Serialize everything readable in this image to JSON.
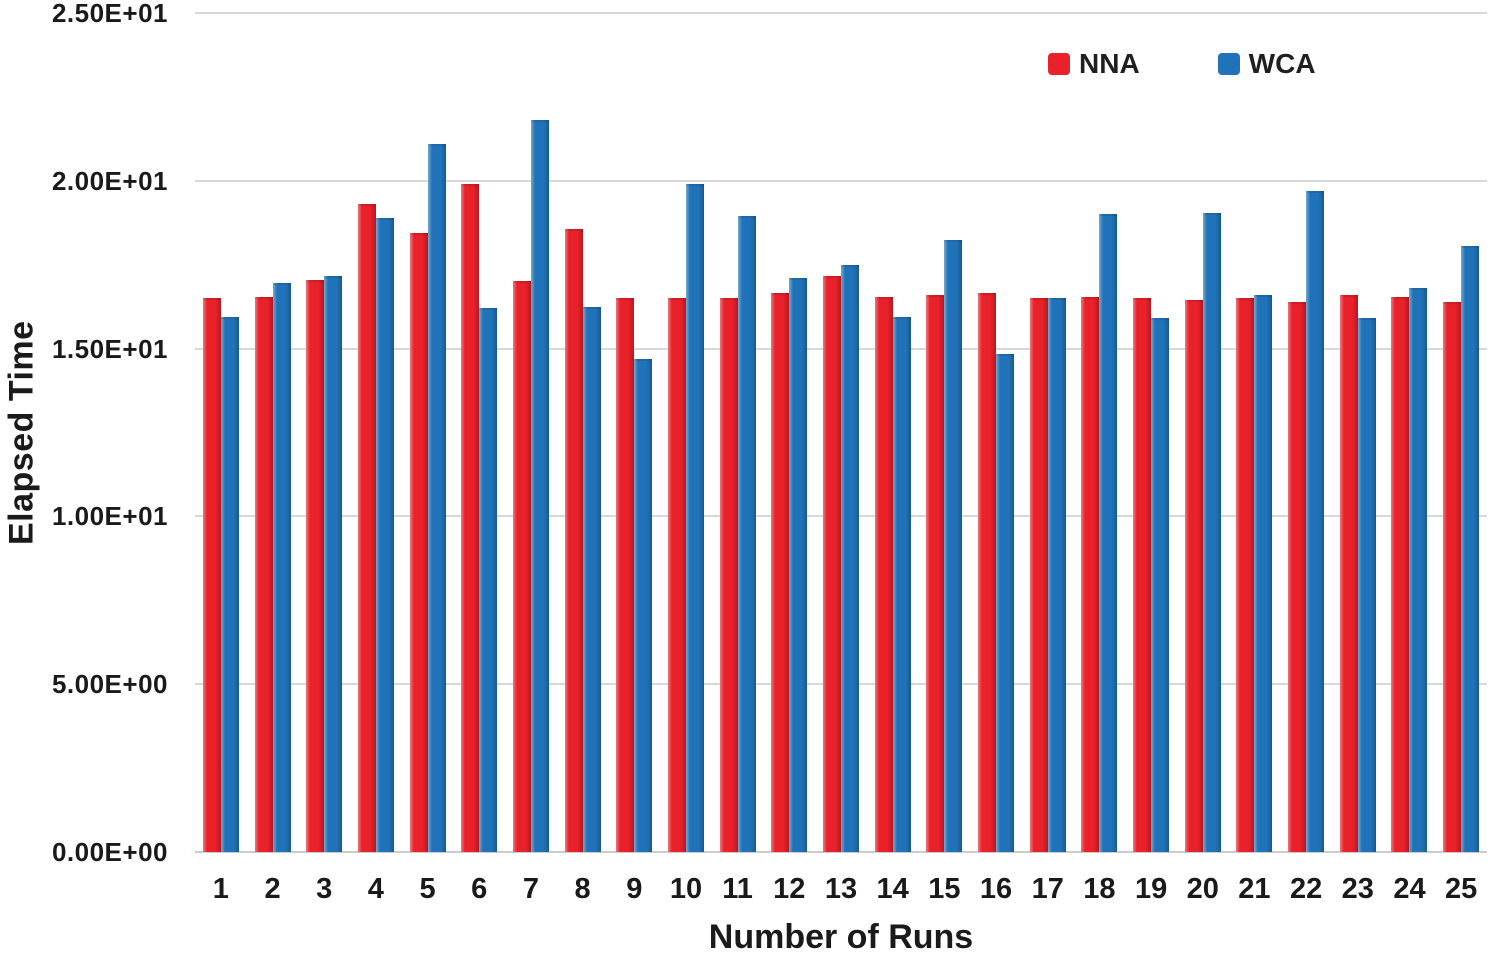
{
  "chart_data": {
    "type": "bar",
    "title": "",
    "xlabel": "Number of Runs",
    "ylabel": "Elapsed Time",
    "categories": [
      "1",
      "2",
      "3",
      "4",
      "5",
      "6",
      "7",
      "8",
      "9",
      "10",
      "11",
      "12",
      "13",
      "14",
      "15",
      "16",
      "17",
      "18",
      "19",
      "20",
      "21",
      "22",
      "23",
      "24",
      "25"
    ],
    "series": [
      {
        "name": "NNA",
        "color": "#e8212a",
        "values": [
          16.5,
          16.55,
          17.05,
          19.3,
          18.45,
          19.9,
          17.0,
          18.55,
          16.5,
          16.5,
          16.5,
          16.65,
          17.15,
          16.55,
          16.6,
          16.65,
          16.5,
          16.55,
          16.5,
          16.45,
          16.5,
          16.4,
          16.6,
          16.55,
          16.4
        ]
      },
      {
        "name": "WCA",
        "color": "#2173b9",
        "values": [
          15.95,
          16.95,
          17.15,
          18.9,
          21.1,
          16.2,
          21.8,
          16.25,
          14.7,
          19.9,
          18.95,
          17.1,
          17.5,
          15.95,
          18.25,
          14.85,
          16.5,
          19.0,
          15.9,
          19.05,
          16.6,
          19.7,
          15.9,
          16.8,
          18.05
        ]
      }
    ],
    "ylim": [
      0,
      25
    ],
    "yticks": [
      0,
      5,
      10,
      15,
      20,
      25
    ],
    "ytick_labels": [
      "0.00E+00",
      "5.00E+00",
      "1.00E+01",
      "1.50E+01",
      "2.00E+01",
      "2.50E+01"
    ],
    "grid": true,
    "legend_position": "top-right",
    "colors": {
      "gridline": "#d8d8d8",
      "axis_line": "#cccccc",
      "text": "#1a1a1a"
    }
  }
}
